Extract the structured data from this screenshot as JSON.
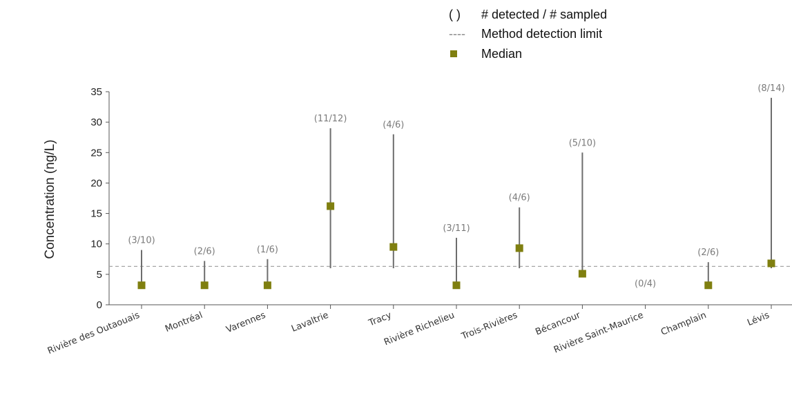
{
  "legend": {
    "paren_symbol": "( )",
    "paren_text": "# detected / # sampled",
    "dash_symbol": "----",
    "dash_text": "Method detection limit",
    "median_text": "Median"
  },
  "chart_data": {
    "type": "range-median",
    "ylabel": "Concentration (ng/L)",
    "ylim": [
      0,
      35
    ],
    "yticks": [
      "0",
      "5",
      "10",
      "15",
      "20",
      "25",
      "30",
      "35"
    ],
    "detection_limit": 6.3,
    "colors": {
      "median": "#7f7f10",
      "range": "#6d6d6d",
      "limit": "#a6a6a6"
    },
    "categories": [
      "Rivière des Outaouais",
      "Montréal",
      "Varennes",
      "Lavaltrie",
      "Tracy",
      "Rivière Richelieu",
      "Trois-Rivières",
      "Bécancour",
      "Rivière Saint-Maurice",
      "Champlain",
      "Lévis"
    ],
    "detected_ratio": [
      "(3/10)",
      "(2/6)",
      "(1/6)",
      "(11/12)",
      "(4/6)",
      "(3/11)",
      "(4/6)",
      "(5/10)",
      "(0/4)",
      "(2/6)",
      "(8/14)"
    ],
    "min": [
      3.2,
      3.2,
      3.2,
      6.0,
      6.0,
      3.2,
      6.0,
      5.0,
      null,
      3.2,
      6.0
    ],
    "max": [
      9.0,
      7.2,
      7.5,
      29.0,
      28.0,
      11.0,
      16.0,
      25.0,
      null,
      7.0,
      34.0
    ],
    "median": [
      3.2,
      3.2,
      3.2,
      16.2,
      9.5,
      3.2,
      9.3,
      5.1,
      null,
      3.2,
      6.8
    ]
  }
}
